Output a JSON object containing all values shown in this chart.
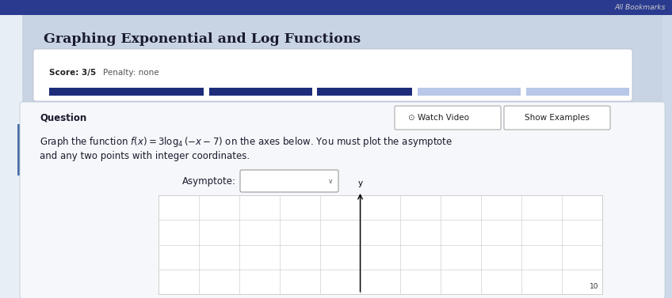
{
  "bg_main": "#cdd9e8",
  "bg_light_panel": "#dde6f0",
  "bg_white_card": "#ffffff",
  "bg_question_area": "#f0f4f8",
  "title": "Graphing Exponential and Log Functions",
  "score_text": "Score: 3/5",
  "penalty_text": "Penalty: none",
  "question_label": "Question",
  "watch_video": "Watch Video",
  "show_examples": "Show Examples",
  "body_line1": "Graph the function $f(x) = 3\\log_4(-x-7)$ on the axes below. You must plot the asymptote",
  "body_line2": "and any two points with integer coordinates.",
  "asymptote_label": "Asymptote:",
  "bookmarks_text": "All Bookmarks",
  "progress_bar_color_dark": "#1e2d7a",
  "progress_bar_color_light": "#b8c8e8",
  "axis_y_label": "y",
  "axis_x_label": "10",
  "top_bar_color": "#2a3b8f",
  "left_strip_color": "#dce6f2",
  "left_blue_bar_color": "#4a6fa5"
}
